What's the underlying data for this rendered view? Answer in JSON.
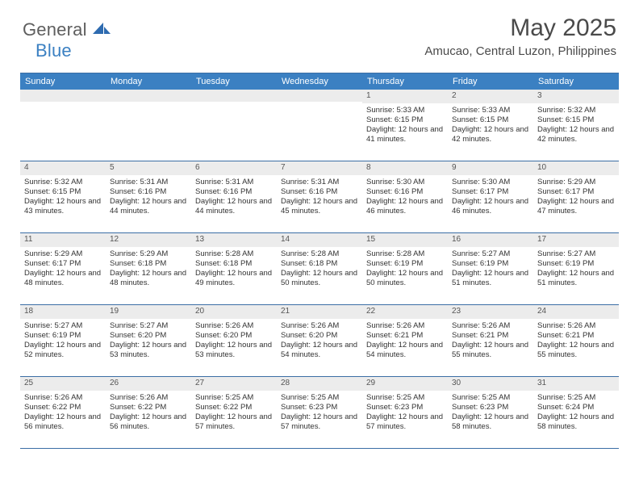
{
  "brand": {
    "word1": "General",
    "word2": "Blue"
  },
  "title": "May 2025",
  "location": "Amucao, Central Luzon, Philippines",
  "colors": {
    "header_bg": "#3b80c2",
    "header_text": "#ffffff",
    "border": "#3b6ea5",
    "daynum_bg": "#ececec",
    "body_text": "#333333",
    "logo_gray": "#5e5e5e",
    "logo_blue": "#3b80c2",
    "page_bg": "#ffffff"
  },
  "weekdays": [
    "Sunday",
    "Monday",
    "Tuesday",
    "Wednesday",
    "Thursday",
    "Friday",
    "Saturday"
  ],
  "weeks": [
    [
      null,
      null,
      null,
      null,
      {
        "n": "1",
        "sr": "5:33 AM",
        "ss": "6:15 PM",
        "dl": "12 hours and 41 minutes."
      },
      {
        "n": "2",
        "sr": "5:33 AM",
        "ss": "6:15 PM",
        "dl": "12 hours and 42 minutes."
      },
      {
        "n": "3",
        "sr": "5:32 AM",
        "ss": "6:15 PM",
        "dl": "12 hours and 42 minutes."
      }
    ],
    [
      {
        "n": "4",
        "sr": "5:32 AM",
        "ss": "6:15 PM",
        "dl": "12 hours and 43 minutes."
      },
      {
        "n": "5",
        "sr": "5:31 AM",
        "ss": "6:16 PM",
        "dl": "12 hours and 44 minutes."
      },
      {
        "n": "6",
        "sr": "5:31 AM",
        "ss": "6:16 PM",
        "dl": "12 hours and 44 minutes."
      },
      {
        "n": "7",
        "sr": "5:31 AM",
        "ss": "6:16 PM",
        "dl": "12 hours and 45 minutes."
      },
      {
        "n": "8",
        "sr": "5:30 AM",
        "ss": "6:16 PM",
        "dl": "12 hours and 46 minutes."
      },
      {
        "n": "9",
        "sr": "5:30 AM",
        "ss": "6:17 PM",
        "dl": "12 hours and 46 minutes."
      },
      {
        "n": "10",
        "sr": "5:29 AM",
        "ss": "6:17 PM",
        "dl": "12 hours and 47 minutes."
      }
    ],
    [
      {
        "n": "11",
        "sr": "5:29 AM",
        "ss": "6:17 PM",
        "dl": "12 hours and 48 minutes."
      },
      {
        "n": "12",
        "sr": "5:29 AM",
        "ss": "6:18 PM",
        "dl": "12 hours and 48 minutes."
      },
      {
        "n": "13",
        "sr": "5:28 AM",
        "ss": "6:18 PM",
        "dl": "12 hours and 49 minutes."
      },
      {
        "n": "14",
        "sr": "5:28 AM",
        "ss": "6:18 PM",
        "dl": "12 hours and 50 minutes."
      },
      {
        "n": "15",
        "sr": "5:28 AM",
        "ss": "6:19 PM",
        "dl": "12 hours and 50 minutes."
      },
      {
        "n": "16",
        "sr": "5:27 AM",
        "ss": "6:19 PM",
        "dl": "12 hours and 51 minutes."
      },
      {
        "n": "17",
        "sr": "5:27 AM",
        "ss": "6:19 PM",
        "dl": "12 hours and 51 minutes."
      }
    ],
    [
      {
        "n": "18",
        "sr": "5:27 AM",
        "ss": "6:19 PM",
        "dl": "12 hours and 52 minutes."
      },
      {
        "n": "19",
        "sr": "5:27 AM",
        "ss": "6:20 PM",
        "dl": "12 hours and 53 minutes."
      },
      {
        "n": "20",
        "sr": "5:26 AM",
        "ss": "6:20 PM",
        "dl": "12 hours and 53 minutes."
      },
      {
        "n": "21",
        "sr": "5:26 AM",
        "ss": "6:20 PM",
        "dl": "12 hours and 54 minutes."
      },
      {
        "n": "22",
        "sr": "5:26 AM",
        "ss": "6:21 PM",
        "dl": "12 hours and 54 minutes."
      },
      {
        "n": "23",
        "sr": "5:26 AM",
        "ss": "6:21 PM",
        "dl": "12 hours and 55 minutes."
      },
      {
        "n": "24",
        "sr": "5:26 AM",
        "ss": "6:21 PM",
        "dl": "12 hours and 55 minutes."
      }
    ],
    [
      {
        "n": "25",
        "sr": "5:26 AM",
        "ss": "6:22 PM",
        "dl": "12 hours and 56 minutes."
      },
      {
        "n": "26",
        "sr": "5:26 AM",
        "ss": "6:22 PM",
        "dl": "12 hours and 56 minutes."
      },
      {
        "n": "27",
        "sr": "5:25 AM",
        "ss": "6:22 PM",
        "dl": "12 hours and 57 minutes."
      },
      {
        "n": "28",
        "sr": "5:25 AM",
        "ss": "6:23 PM",
        "dl": "12 hours and 57 minutes."
      },
      {
        "n": "29",
        "sr": "5:25 AM",
        "ss": "6:23 PM",
        "dl": "12 hours and 57 minutes."
      },
      {
        "n": "30",
        "sr": "5:25 AM",
        "ss": "6:23 PM",
        "dl": "12 hours and 58 minutes."
      },
      {
        "n": "31",
        "sr": "5:25 AM",
        "ss": "6:24 PM",
        "dl": "12 hours and 58 minutes."
      }
    ]
  ],
  "labels": {
    "sunrise": "Sunrise:",
    "sunset": "Sunset:",
    "daylight": "Daylight:"
  }
}
